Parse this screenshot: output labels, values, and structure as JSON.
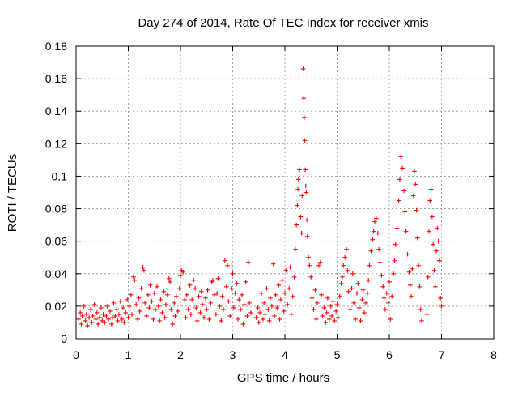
{
  "chart_data": {
    "type": "scatter",
    "title": "Day 274 of 2014, Rate Of TEC Index for receiver xmis",
    "xlabel": "GPS time / hours",
    "ylabel": "ROTI / TECUs",
    "xlim": [
      0,
      8
    ],
    "ylim": [
      0,
      0.18
    ],
    "x_ticks": [
      0,
      1,
      2,
      3,
      4,
      5,
      6,
      7,
      8
    ],
    "x_tick_labels": [
      "0",
      "1",
      "2",
      "3",
      "4",
      "5",
      "6",
      "7",
      "8"
    ],
    "y_ticks": [
      0,
      0.02,
      0.04,
      0.06,
      0.08,
      0.1,
      0.12,
      0.14,
      0.16,
      0.18
    ],
    "y_tick_labels": [
      "0",
      "0.02",
      "0.04",
      "0.06",
      "0.08",
      "0.1",
      "0.12",
      "0.14",
      "0.16",
      "0.18"
    ],
    "grid": true,
    "marker": "+",
    "color": "#ff0000",
    "series": [
      {
        "name": "ROTI",
        "points": [
          [
            0.05,
            0.012
          ],
          [
            0.08,
            0.016
          ],
          [
            0.1,
            0.009
          ],
          [
            0.12,
            0.014
          ],
          [
            0.15,
            0.02
          ],
          [
            0.18,
            0.011
          ],
          [
            0.2,
            0.015
          ],
          [
            0.22,
            0.008
          ],
          [
            0.25,
            0.013
          ],
          [
            0.28,
            0.018
          ],
          [
            0.3,
            0.01
          ],
          [
            0.32,
            0.014
          ],
          [
            0.35,
            0.021
          ],
          [
            0.38,
            0.012
          ],
          [
            0.4,
            0.016
          ],
          [
            0.42,
            0.009
          ],
          [
            0.45,
            0.013
          ],
          [
            0.48,
            0.019
          ],
          [
            0.5,
            0.011
          ],
          [
            0.52,
            0.015
          ],
          [
            0.55,
            0.01
          ],
          [
            0.58,
            0.014
          ],
          [
            0.6,
            0.02
          ],
          [
            0.62,
            0.012
          ],
          [
            0.65,
            0.017
          ],
          [
            0.68,
            0.009
          ],
          [
            0.7,
            0.013
          ],
          [
            0.72,
            0.022
          ],
          [
            0.75,
            0.014
          ],
          [
            0.78,
            0.018
          ],
          [
            0.8,
            0.011
          ],
          [
            0.82,
            0.015
          ],
          [
            0.85,
            0.023
          ],
          [
            0.88,
            0.012
          ],
          [
            0.9,
            0.019
          ],
          [
            0.92,
            0.01
          ],
          [
            0.95,
            0.016
          ],
          [
            0.98,
            0.024
          ],
          [
            1.0,
            0.013
          ],
          [
            1.02,
            0.02
          ],
          [
            1.05,
            0.027
          ],
          [
            1.07,
            0.015
          ],
          [
            1.1,
            0.038
          ],
          [
            1.12,
            0.036
          ],
          [
            1.15,
            0.021
          ],
          [
            1.18,
            0.012
          ],
          [
            1.2,
            0.025
          ],
          [
            1.22,
            0.017
          ],
          [
            1.25,
            0.031
          ],
          [
            1.28,
            0.044
          ],
          [
            1.3,
            0.042
          ],
          [
            1.32,
            0.022
          ],
          [
            1.35,
            0.014
          ],
          [
            1.38,
            0.027
          ],
          [
            1.4,
            0.019
          ],
          [
            1.42,
            0.033
          ],
          [
            1.45,
            0.023
          ],
          [
            1.48,
            0.012
          ],
          [
            1.5,
            0.028
          ],
          [
            1.52,
            0.018
          ],
          [
            1.55,
            0.032
          ],
          [
            1.58,
            0.02
          ],
          [
            1.6,
            0.011
          ],
          [
            1.62,
            0.024
          ],
          [
            1.65,
            0.016
          ],
          [
            1.68,
            0.029
          ],
          [
            1.7,
            0.013
          ],
          [
            1.72,
            0.021
          ],
          [
            1.75,
            0.027
          ],
          [
            1.78,
            0.037
          ],
          [
            1.8,
            0.035
          ],
          [
            1.82,
            0.018
          ],
          [
            1.85,
            0.009
          ],
          [
            1.88,
            0.022
          ],
          [
            1.9,
            0.014
          ],
          [
            1.92,
            0.026
          ],
          [
            1.95,
            0.017
          ],
          [
            1.98,
            0.031
          ],
          [
            2.0,
            0.039
          ],
          [
            2.02,
            0.042
          ],
          [
            2.05,
            0.041
          ],
          [
            2.08,
            0.024
          ],
          [
            2.1,
            0.013
          ],
          [
            2.12,
            0.027
          ],
          [
            2.15,
            0.018
          ],
          [
            2.18,
            0.033
          ],
          [
            2.2,
            0.015
          ],
          [
            2.22,
            0.024
          ],
          [
            2.25,
            0.036
          ],
          [
            2.28,
            0.031
          ],
          [
            2.3,
            0.019
          ],
          [
            2.32,
            0.011
          ],
          [
            2.35,
            0.026
          ],
          [
            2.38,
            0.016
          ],
          [
            2.4,
            0.029
          ],
          [
            2.42,
            0.021
          ],
          [
            2.45,
            0.013
          ],
          [
            2.48,
            0.025
          ],
          [
            2.5,
            0.018
          ],
          [
            2.52,
            0.03
          ],
          [
            2.55,
            0.012
          ],
          [
            2.58,
            0.022
          ],
          [
            2.6,
            0.035
          ],
          [
            2.62,
            0.036
          ],
          [
            2.65,
            0.027
          ],
          [
            2.68,
            0.015
          ],
          [
            2.7,
            0.028
          ],
          [
            2.72,
            0.037
          ],
          [
            2.75,
            0.02
          ],
          [
            2.78,
            0.011
          ],
          [
            2.8,
            0.026
          ],
          [
            2.82,
            0.018
          ],
          [
            2.85,
            0.048
          ],
          [
            2.88,
            0.032
          ],
          [
            2.9,
            0.045
          ],
          [
            2.92,
            0.023
          ],
          [
            2.95,
            0.014
          ],
          [
            2.98,
            0.031
          ],
          [
            3.0,
            0.04
          ],
          [
            3.02,
            0.019
          ],
          [
            3.05,
            0.028
          ],
          [
            3.08,
            0.034
          ],
          [
            3.1,
            0.012
          ],
          [
            3.12,
            0.024
          ],
          [
            3.15,
            0.018
          ],
          [
            3.18,
            0.027
          ],
          [
            3.2,
            0.009
          ],
          [
            3.22,
            0.021
          ],
          [
            3.25,
            0.035
          ],
          [
            3.28,
            0.014
          ],
          [
            3.3,
            0.047
          ],
          [
            3.32,
            0.022
          ],
          [
            3.35,
            0.016
          ],
          [
            3.45,
            0.013
          ],
          [
            3.48,
            0.019
          ],
          [
            3.5,
            0.01
          ],
          [
            3.52,
            0.016
          ],
          [
            3.55,
            0.028
          ],
          [
            3.58,
            0.012
          ],
          [
            3.6,
            0.022
          ],
          [
            3.62,
            0.015
          ],
          [
            3.65,
            0.031
          ],
          [
            3.68,
            0.018
          ],
          [
            3.7,
            0.011
          ],
          [
            3.72,
            0.025
          ],
          [
            3.75,
            0.02
          ],
          [
            3.78,
            0.046
          ],
          [
            3.8,
            0.014
          ],
          [
            3.82,
            0.027
          ],
          [
            3.85,
            0.019
          ],
          [
            3.88,
            0.033
          ],
          [
            3.9,
            0.012
          ],
          [
            3.92,
            0.024
          ],
          [
            3.95,
            0.036
          ],
          [
            3.98,
            0.017
          ],
          [
            4.0,
            0.028
          ],
          [
            4.02,
            0.042
          ],
          [
            4.05,
            0.021
          ],
          [
            4.08,
            0.031
          ],
          [
            4.1,
            0.044
          ],
          [
            4.12,
            0.015
          ],
          [
            4.15,
            0.026
          ],
          [
            4.18,
            0.038
          ],
          [
            4.2,
            0.055
          ],
          [
            4.22,
            0.07
          ],
          [
            4.24,
            0.082
          ],
          [
            4.25,
            0.092
          ],
          [
            4.26,
            0.098
          ],
          [
            4.28,
            0.104
          ],
          [
            4.3,
            0.075
          ],
          [
            4.32,
            0.065
          ],
          [
            4.33,
            0.088
          ],
          [
            4.35,
            0.166
          ],
          [
            4.36,
            0.148
          ],
          [
            4.37,
            0.136
          ],
          [
            4.38,
            0.122
          ],
          [
            4.39,
            0.104
          ],
          [
            4.4,
            0.094
          ],
          [
            4.41,
            0.09
          ],
          [
            4.42,
            0.073
          ],
          [
            4.43,
            0.063
          ],
          [
            4.45,
            0.05
          ],
          [
            4.47,
            0.045
          ],
          [
            4.5,
            0.038
          ],
          [
            4.52,
            0.025
          ],
          [
            4.55,
            0.018
          ],
          [
            4.58,
            0.03
          ],
          [
            4.6,
            0.012
          ],
          [
            4.62,
            0.022
          ],
          [
            4.65,
            0.045
          ],
          [
            4.68,
            0.047
          ],
          [
            4.7,
            0.027
          ],
          [
            4.72,
            0.014
          ],
          [
            4.75,
            0.019
          ],
          [
            4.78,
            0.01
          ],
          [
            4.8,
            0.016
          ],
          [
            4.82,
            0.025
          ],
          [
            4.85,
            0.012
          ],
          [
            4.88,
            0.02
          ],
          [
            4.9,
            0.014
          ],
          [
            4.92,
            0.023
          ],
          [
            4.95,
            0.011
          ],
          [
            4.98,
            0.017
          ],
          [
            5.0,
            0.021
          ],
          [
            5.02,
            0.013
          ],
          [
            5.05,
            0.026
          ],
          [
            5.08,
            0.034
          ],
          [
            5.1,
            0.038
          ],
          [
            5.12,
            0.045
          ],
          [
            5.15,
            0.05
          ],
          [
            5.18,
            0.055
          ],
          [
            5.2,
            0.042
          ],
          [
            5.22,
            0.029
          ],
          [
            5.25,
            0.018
          ],
          [
            5.28,
            0.031
          ],
          [
            5.3,
            0.04
          ],
          [
            5.32,
            0.022
          ],
          [
            5.35,
            0.012
          ],
          [
            5.38,
            0.028
          ],
          [
            5.4,
            0.034
          ],
          [
            5.42,
            0.019
          ],
          [
            5.45,
            0.011
          ],
          [
            5.48,
            0.024
          ],
          [
            5.5,
            0.03
          ],
          [
            5.52,
            0.016
          ],
          [
            5.55,
            0.022
          ],
          [
            5.58,
            0.028
          ],
          [
            5.6,
            0.036
          ],
          [
            5.62,
            0.045
          ],
          [
            5.65,
            0.054
          ],
          [
            5.68,
            0.061
          ],
          [
            5.7,
            0.066
          ],
          [
            5.72,
            0.072
          ],
          [
            5.75,
            0.074
          ],
          [
            5.78,
            0.065
          ],
          [
            5.8,
            0.055
          ],
          [
            5.82,
            0.047
          ],
          [
            5.85,
            0.039
          ],
          [
            5.88,
            0.032
          ],
          [
            5.9,
            0.025
          ],
          [
            5.92,
            0.018
          ],
          [
            5.95,
            0.028
          ],
          [
            5.98,
            0.022
          ],
          [
            6.0,
            0.035
          ],
          [
            6.02,
            0.012
          ],
          [
            6.05,
            0.026
          ],
          [
            6.08,
            0.04
          ],
          [
            6.1,
            0.048
          ],
          [
            6.12,
            0.058
          ],
          [
            6.15,
            0.068
          ],
          [
            6.18,
            0.085
          ],
          [
            6.2,
            0.098
          ],
          [
            6.22,
            0.112
          ],
          [
            6.25,
            0.105
          ],
          [
            6.28,
            0.091
          ],
          [
            6.3,
            0.078
          ],
          [
            6.32,
            0.066
          ],
          [
            6.35,
            0.052
          ],
          [
            6.38,
            0.041
          ],
          [
            6.4,
            0.033
          ],
          [
            6.42,
            0.026
          ],
          [
            6.44,
            0.043
          ],
          [
            6.46,
            0.088
          ],
          [
            6.48,
            0.103
          ],
          [
            6.5,
            0.095
          ],
          [
            6.52,
            0.079
          ],
          [
            6.54,
            0.062
          ],
          [
            6.56,
            0.045
          ],
          [
            6.58,
            0.032
          ],
          [
            6.6,
            0.018
          ],
          [
            6.62,
            0.011
          ],
          [
            6.72,
            0.015
          ],
          [
            6.74,
            0.038
          ],
          [
            6.76,
            0.066
          ],
          [
            6.78,
            0.085
          ],
          [
            6.8,
            0.092
          ],
          [
            6.82,
            0.075
          ],
          [
            6.84,
            0.058
          ],
          [
            6.86,
            0.042
          ],
          [
            6.88,
            0.032
          ],
          [
            6.9,
            0.054
          ],
          [
            6.92,
            0.068
          ],
          [
            6.94,
            0.06
          ],
          [
            6.96,
            0.048
          ],
          [
            6.98,
            0.025
          ],
          [
            7.0,
            0.02
          ]
        ]
      }
    ]
  }
}
